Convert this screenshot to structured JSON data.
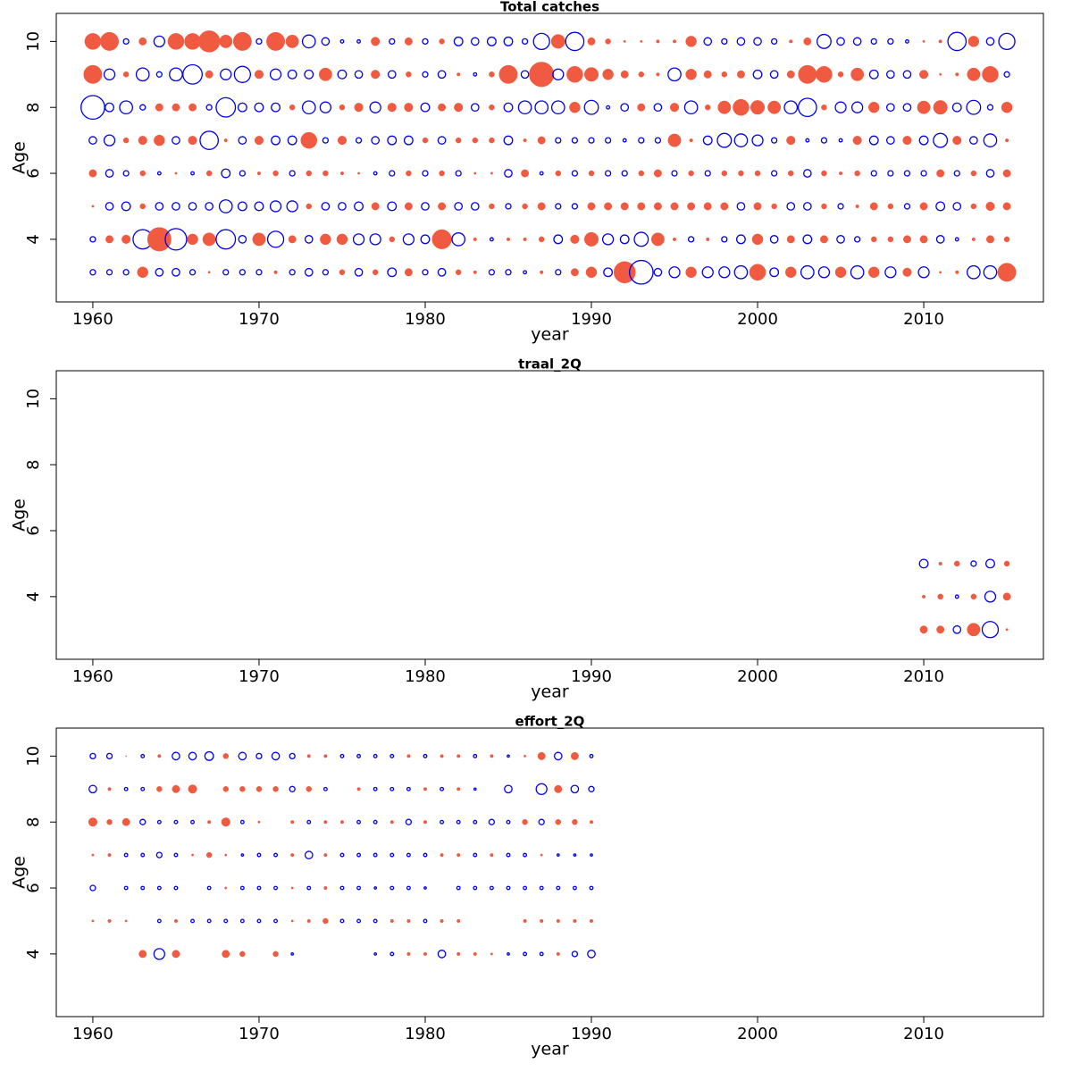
{
  "chart_data": [
    {
      "type": "bubble",
      "title": "Total catches",
      "xlabel": "year",
      "ylabel": "Age",
      "positive_color": "#f05a40",
      "negative_color": "#0000ee",
      "xlim": [
        1957.8,
        2017.2
      ],
      "ylim": [
        2.1,
        10.85
      ],
      "xticks": [
        1960,
        1970,
        1980,
        1990,
        2000,
        2010
      ],
      "yticks": [
        4,
        6,
        8,
        10
      ],
      "x": [
        1960,
        1961,
        1962,
        1963,
        1964,
        1965,
        1966,
        1967,
        1968,
        1969,
        1970,
        1971,
        1972,
        1973,
        1974,
        1975,
        1976,
        1977,
        1978,
        1979,
        1980,
        1981,
        1982,
        1983,
        1984,
        1985,
        1986,
        1987,
        1988,
        1989,
        1990,
        1991,
        1992,
        1993,
        1994,
        1995,
        1996,
        1997,
        1998,
        1999,
        2000,
        2001,
        2002,
        2003,
        2004,
        2005,
        2006,
        2007,
        2008,
        2009,
        2010,
        2011,
        2012,
        2013,
        2014,
        2015
      ],
      "y": [
        10,
        9,
        8,
        7,
        6,
        5,
        4,
        3
      ],
      "values": [
        [
          1.5,
          1.7,
          -0.5,
          0.7,
          -1.0,
          1.5,
          1.5,
          2.0,
          1.2,
          1.7,
          -0.5,
          1.7,
          1.2,
          -1.2,
          -0.7,
          -0.3,
          -0.3,
          0.8,
          -0.5,
          0.7,
          -0.5,
          0.5,
          -0.8,
          -0.7,
          -0.8,
          -0.8,
          -0.5,
          -1.5,
          1.3,
          -1.7,
          0.7,
          0.5,
          0.2,
          0.2,
          0.3,
          0.3,
          1.0,
          -0.7,
          -0.5,
          -0.7,
          -0.7,
          -0.5,
          0.3,
          0.7,
          -1.3,
          -0.7,
          -0.7,
          -0.5,
          -0.5,
          -0.3,
          0.2,
          0.3,
          -1.7,
          1.0,
          -0.7,
          -1.5
        ],
        [
          1.7,
          -1.0,
          0.5,
          -1.2,
          -0.5,
          -1.2,
          -1.8,
          0.7,
          -1.0,
          -1.5,
          0.8,
          -1.0,
          -0.8,
          -0.8,
          1.2,
          -0.8,
          -0.7,
          0.8,
          -0.7,
          0.5,
          -0.5,
          -0.7,
          0.3,
          -0.3,
          0.5,
          1.7,
          -0.7,
          2.3,
          -1.0,
          1.5,
          1.3,
          1.0,
          0.7,
          0.5,
          0.3,
          -1.2,
          1.0,
          0.7,
          0.5,
          0.7,
          -0.8,
          -0.7,
          0.7,
          1.7,
          1.5,
          0.5,
          1.2,
          -0.8,
          -0.7,
          -0.7,
          0.8,
          0.2,
          0.3,
          1.2,
          1.5,
          -0.5
        ],
        [
          -2.2,
          -0.8,
          -1.2,
          -0.5,
          0.7,
          0.7,
          0.7,
          -0.5,
          -1.8,
          -0.8,
          -0.8,
          -0.8,
          0.5,
          -1.2,
          -1.0,
          0.5,
          0.8,
          -1.0,
          0.8,
          0.8,
          -0.8,
          0.7,
          0.8,
          -0.7,
          0.5,
          -0.8,
          -1.2,
          -1.2,
          -1.2,
          1.0,
          -1.3,
          -0.3,
          -0.7,
          0.7,
          -0.7,
          0.8,
          -1.2,
          0.5,
          1.2,
          1.5,
          1.3,
          1.2,
          -1.2,
          -1.7,
          0.5,
          -1.0,
          -1.0,
          1.0,
          -0.7,
          -0.7,
          1.2,
          1.3,
          -0.8,
          -1.3,
          -0.5,
          1.0
        ],
        [
          -0.7,
          -1.0,
          0.5,
          0.8,
          1.0,
          -0.7,
          0.8,
          -1.7,
          0.3,
          -0.7,
          0.8,
          -0.8,
          -0.8,
          1.5,
          -0.5,
          0.8,
          -0.5,
          -0.7,
          -0.8,
          -0.8,
          0.5,
          -0.7,
          0.5,
          0.5,
          0.5,
          -0.8,
          0.3,
          0.7,
          -0.5,
          -0.5,
          -0.5,
          -0.5,
          -0.3,
          -0.5,
          -0.5,
          1.2,
          0.3,
          -0.8,
          -1.3,
          -1.2,
          -1.0,
          -0.5,
          0.8,
          -0.3,
          -0.5,
          -0.3,
          0.8,
          -0.8,
          -0.7,
          0.8,
          -0.8,
          -1.3,
          0.8,
          -0.7,
          -1.2,
          0.3
        ],
        [
          0.7,
          -0.7,
          -0.5,
          0.5,
          -0.3,
          0.2,
          -0.3,
          0.5,
          -0.8,
          -0.5,
          0.3,
          0.5,
          -0.5,
          0.5,
          0.5,
          0.3,
          0.2,
          -0.3,
          -0.5,
          0.5,
          -0.5,
          0.5,
          -0.5,
          0.2,
          0.2,
          -0.7,
          0.7,
          -0.3,
          0.5,
          -0.5,
          0.5,
          -0.5,
          -0.5,
          0.5,
          0.7,
          -0.5,
          0.5,
          -0.5,
          0.5,
          0.5,
          0.5,
          -0.5,
          0.5,
          -0.7,
          0.5,
          0.3,
          0.5,
          -0.5,
          -0.5,
          -0.5,
          -0.5,
          0.7,
          -0.5,
          0.5,
          -0.7,
          0.7
        ],
        [
          0.2,
          -0.7,
          -0.8,
          0.5,
          -0.7,
          -0.7,
          -0.7,
          -0.7,
          -1.2,
          -0.8,
          -0.8,
          -1.0,
          -1.0,
          0.5,
          -0.7,
          -0.7,
          -0.8,
          0.7,
          -0.8,
          0.7,
          -0.7,
          0.7,
          -0.7,
          -0.7,
          0.5,
          -0.5,
          0.5,
          0.7,
          -0.5,
          -0.5,
          0.7,
          0.7,
          0.7,
          0.7,
          0.7,
          0.7,
          0.7,
          0.7,
          0.7,
          -0.7,
          0.7,
          0.5,
          -0.7,
          -0.7,
          0.5,
          -0.5,
          0.3,
          0.7,
          0.5,
          -0.5,
          0.7,
          -0.8,
          -0.7,
          0.5,
          0.8,
          0.7
        ],
        [
          -0.5,
          0.7,
          0.8,
          -1.8,
          2.2,
          -2.0,
          1.0,
          1.2,
          -1.8,
          -0.7,
          1.2,
          -1.5,
          0.7,
          -0.7,
          1.0,
          1.0,
          -1.0,
          -1.0,
          0.5,
          -1.0,
          -0.8,
          1.8,
          -1.2,
          0.3,
          -0.3,
          0.3,
          0.3,
          0.5,
          -0.8,
          0.8,
          1.3,
          -1.0,
          -0.8,
          -1.3,
          1.2,
          0.3,
          -0.5,
          0.3,
          -0.5,
          -0.8,
          1.0,
          -0.7,
          0.7,
          -0.8,
          0.7,
          -0.7,
          -0.5,
          0.5,
          0.5,
          0.7,
          0.7,
          -0.7,
          -0.3,
          0.3,
          0.7,
          0.5
        ],
        [
          -0.5,
          -0.5,
          -0.5,
          1.0,
          -0.7,
          -0.7,
          -0.5,
          0.2,
          -0.5,
          -0.5,
          -0.5,
          0.3,
          -0.5,
          -0.7,
          -0.5,
          0.5,
          -0.7,
          0.5,
          -0.8,
          0.7,
          -0.5,
          -0.7,
          0.5,
          0.3,
          -0.5,
          -0.5,
          -0.3,
          0.3,
          -0.5,
          0.7,
          1.0,
          -0.8,
          2.0,
          -2.2,
          -0.7,
          -1.0,
          1.0,
          -1.0,
          -1.0,
          -1.2,
          1.5,
          -0.8,
          1.0,
          -1.2,
          -1.0,
          1.0,
          -1.2,
          1.0,
          -1.0,
          0.8,
          -1.0,
          0.2,
          0.3,
          -1.2,
          -1.2,
          1.7
        ]
      ]
    },
    {
      "type": "bubble",
      "title": "traal_2Q",
      "xlabel": "year",
      "ylabel": "Age",
      "positive_color": "#f05a40",
      "negative_color": "#0000ee",
      "xlim": [
        1957.8,
        2017.2
      ],
      "ylim": [
        2.1,
        10.85
      ],
      "xticks": [
        1960,
        1970,
        1980,
        1990,
        2000,
        2010
      ],
      "yticks": [
        4,
        6,
        8,
        10
      ],
      "x": [
        2010,
        2011,
        2012,
        2013,
        2014,
        2015
      ],
      "y": [
        5,
        4,
        3
      ],
      "values": [
        [
          -0.8,
          0.3,
          0.5,
          -0.5,
          -0.8,
          0.5
        ],
        [
          0.3,
          0.5,
          -0.3,
          0.5,
          -1.0,
          0.7
        ],
        [
          0.7,
          0.7,
          -0.7,
          1.2,
          -1.5,
          0.2
        ]
      ]
    },
    {
      "type": "bubble",
      "title": "effort_2Q",
      "xlabel": "year",
      "ylabel": "Age",
      "positive_color": "#f05a40",
      "negative_color": "#0000ee",
      "xlim": [
        1957.8,
        2017.2
      ],
      "ylim": [
        2.1,
        10.85
      ],
      "xticks": [
        1960,
        1970,
        1980,
        1990,
        2000,
        2010
      ],
      "yticks": [
        4,
        6,
        8,
        10
      ],
      "x": [
        1960,
        1961,
        1962,
        1963,
        1964,
        1965,
        1966,
        1967,
        1968,
        1969,
        1970,
        1971,
        1972,
        1973,
        1974,
        1975,
        1976,
        1977,
        1978,
        1979,
        1980,
        1981,
        1982,
        1983,
        1984,
        1985,
        1986,
        1987,
        1988,
        1989,
        1990
      ],
      "y": [
        10,
        9,
        8,
        7,
        6,
        5,
        4
      ],
      "values": [
        [
          -0.5,
          -0.5,
          0.1,
          -0.3,
          0.3,
          -0.7,
          -0.7,
          -0.8,
          0.5,
          -0.7,
          -0.5,
          -0.7,
          -0.5,
          0.3,
          0.3,
          -0.3,
          -0.3,
          -0.3,
          -0.3,
          0.3,
          -0.3,
          0.3,
          0.3,
          -0.3,
          0.3,
          -0.2,
          0.2,
          0.7,
          -0.7,
          0.7,
          -0.3
        ],
        [
          -0.7,
          0.3,
          -0.3,
          -0.3,
          0.5,
          0.7,
          0.8,
          null,
          0.5,
          0.5,
          0.5,
          0.5,
          -0.5,
          0.5,
          -0.3,
          null,
          0.3,
          -0.3,
          -0.3,
          -0.3,
          0.3,
          -0.3,
          0.3,
          -0.2,
          null,
          -0.7,
          null,
          -1.0,
          0.7,
          -0.7,
          -0.5
        ],
        [
          0.8,
          0.5,
          0.7,
          -0.5,
          -0.3,
          -0.3,
          -0.3,
          0.3,
          0.8,
          -0.3,
          0.2,
          null,
          0.3,
          -0.3,
          0.3,
          0.3,
          -0.3,
          -0.3,
          0.3,
          -0.5,
          0.3,
          -0.3,
          -0.3,
          -0.3,
          -0.5,
          -0.3,
          0.5,
          -0.5,
          0.5,
          0.5,
          0.3
        ],
        [
          0.2,
          0.3,
          -0.3,
          -0.3,
          -0.5,
          -0.3,
          0.2,
          0.5,
          0.2,
          -0.2,
          -0.3,
          -0.3,
          0.3,
          -0.7,
          0.3,
          -0.3,
          -0.3,
          -0.3,
          -0.3,
          -0.3,
          -0.3,
          0.3,
          0.3,
          -0.3,
          0.3,
          -0.3,
          -0.3,
          0.2,
          -0.2,
          -0.2,
          -0.2
        ],
        [
          -0.5,
          null,
          -0.3,
          -0.3,
          -0.3,
          -0.3,
          null,
          -0.3,
          0.2,
          -0.3,
          -0.3,
          -0.3,
          0.2,
          -0.3,
          0.3,
          -0.3,
          -0.3,
          -0.2,
          -0.3,
          -0.3,
          -0.2,
          null,
          -0.3,
          -0.3,
          -0.3,
          -0.3,
          -0.3,
          -0.3,
          -0.3,
          -0.3,
          -0.3
        ],
        [
          0.2,
          0.3,
          0.2,
          null,
          -0.3,
          0.3,
          -0.3,
          -0.3,
          -0.3,
          -0.3,
          -0.3,
          -0.3,
          0.2,
          0.3,
          0.5,
          -0.3,
          -0.3,
          -0.3,
          0.3,
          0.3,
          -0.3,
          0.3,
          0.3,
          null,
          null,
          null,
          0.3,
          0.3,
          0.3,
          0.3,
          0.3
        ],
        [
          null,
          null,
          null,
          0.7,
          -1.0,
          0.7,
          null,
          null,
          0.7,
          0.5,
          null,
          0.5,
          -0.2,
          null,
          null,
          null,
          null,
          -0.2,
          -0.3,
          0.3,
          0.3,
          -0.7,
          0.3,
          0.3,
          0.2,
          -0.2,
          -0.3,
          -0.3,
          0.3,
          -0.5,
          -0.7
        ]
      ]
    }
  ]
}
